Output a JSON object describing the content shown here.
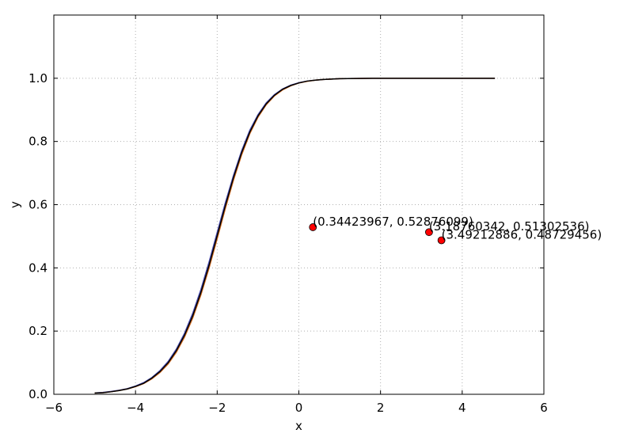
{
  "chart_data": {
    "type": "line",
    "title": "",
    "xlabel": "x",
    "ylabel": "y",
    "xlim": [
      -6,
      6
    ],
    "ylim": [
      0,
      1.2
    ],
    "xticks": [
      -6,
      -4,
      -2,
      0,
      2,
      4,
      6
    ],
    "xtick_labels": [
      "−6",
      "−4",
      "−2",
      "0",
      "2",
      "4",
      "6"
    ],
    "yticks": [
      0.0,
      0.2,
      0.4,
      0.6,
      0.8,
      1.0
    ],
    "ytick_labels": [
      "0.0",
      "0.2",
      "0.4",
      "0.6",
      "0.8",
      "1.0"
    ],
    "grid": true,
    "series": [
      {
        "color": "#4c4cb0",
        "x": [
          -5.0,
          -4.8,
          -4.6,
          -4.4,
          -4.2,
          -4.0,
          -3.8,
          -3.6,
          -3.4,
          -3.2,
          -3.0,
          -2.8,
          -2.6,
          -2.4,
          -2.2,
          -2.0,
          -1.8,
          -1.6,
          -1.4,
          -1.2,
          -1.0,
          -0.8,
          -0.6,
          -0.4,
          -0.2,
          0.0,
          0.2,
          0.4,
          0.6,
          0.8,
          1.0,
          1.2,
          1.4,
          1.6,
          1.8,
          2.0,
          2.4,
          2.8,
          3.2,
          3.6,
          4.0,
          4.4,
          4.8
        ],
        "y": [
          0.004,
          0.006,
          0.009,
          0.013,
          0.018,
          0.026,
          0.037,
          0.053,
          0.075,
          0.104,
          0.143,
          0.193,
          0.256,
          0.331,
          0.418,
          0.512,
          0.606,
          0.693,
          0.771,
          0.836,
          0.885,
          0.922,
          0.948,
          0.966,
          0.978,
          0.986,
          0.991,
          0.994,
          0.996,
          0.9975,
          0.9985,
          0.999,
          0.9994,
          0.9996,
          0.9998,
          0.9999,
          1.0,
          1.0,
          1.0,
          1.0,
          1.0,
          1.0,
          1.0
        ]
      },
      {
        "color": "#d2691e",
        "x": [
          -5.0,
          -4.8,
          -4.6,
          -4.4,
          -4.2,
          -4.0,
          -3.8,
          -3.6,
          -3.4,
          -3.2,
          -3.0,
          -2.8,
          -2.6,
          -2.4,
          -2.2,
          -2.0,
          -1.8,
          -1.6,
          -1.4,
          -1.2,
          -1.0,
          -0.8,
          -0.6,
          -0.4,
          -0.2,
          0.0,
          0.2,
          0.4,
          0.6,
          0.8,
          1.0,
          1.2,
          1.4,
          1.6,
          1.8,
          2.0,
          2.4,
          2.8,
          3.2,
          3.6,
          4.0,
          4.4,
          4.8
        ],
        "y": [
          0.004,
          0.005,
          0.008,
          0.012,
          0.017,
          0.024,
          0.034,
          0.049,
          0.069,
          0.096,
          0.133,
          0.181,
          0.241,
          0.314,
          0.399,
          0.492,
          0.588,
          0.678,
          0.758,
          0.825,
          0.877,
          0.916,
          0.944,
          0.963,
          0.976,
          0.985,
          0.99,
          0.994,
          0.996,
          0.9975,
          0.9985,
          0.999,
          0.9994,
          0.9996,
          0.9998,
          0.9999,
          1.0,
          1.0,
          1.0,
          1.0,
          1.0,
          1.0,
          1.0
        ]
      },
      {
        "color": "#000000",
        "x": [
          -5.0,
          -4.8,
          -4.6,
          -4.4,
          -4.2,
          -4.0,
          -3.8,
          -3.6,
          -3.4,
          -3.2,
          -3.0,
          -2.8,
          -2.6,
          -2.4,
          -2.2,
          -2.0,
          -1.8,
          -1.6,
          -1.4,
          -1.2,
          -1.0,
          -0.8,
          -0.6,
          -0.4,
          -0.2,
          0.0,
          0.2,
          0.4,
          0.6,
          0.8,
          1.0,
          1.2,
          1.4,
          1.6,
          1.8,
          2.0,
          2.4,
          2.8,
          3.2,
          3.6,
          4.0,
          4.4,
          4.8
        ],
        "y": [
          0.004,
          0.005,
          0.008,
          0.012,
          0.017,
          0.025,
          0.035,
          0.051,
          0.072,
          0.1,
          0.138,
          0.187,
          0.248,
          0.322,
          0.408,
          0.502,
          0.597,
          0.686,
          0.765,
          0.83,
          0.881,
          0.919,
          0.946,
          0.965,
          0.977,
          0.985,
          0.991,
          0.994,
          0.996,
          0.9975,
          0.9985,
          0.999,
          0.9994,
          0.9996,
          0.9998,
          0.9999,
          1.0,
          1.0,
          1.0,
          1.0,
          1.0,
          1.0,
          1.0
        ]
      }
    ],
    "points": [
      {
        "x": 0.34423967,
        "y": 0.52876099,
        "label": "(0.34423967, 0.52876099)"
      },
      {
        "x": 3.18760342,
        "y": 0.51302536,
        "label": "(3.18760342, 0.51302536)"
      },
      {
        "x": 3.49212886,
        "y": 0.48729456,
        "label": "(3.49212886, 0.48729456)"
      }
    ],
    "point_color": "#ff0000"
  }
}
